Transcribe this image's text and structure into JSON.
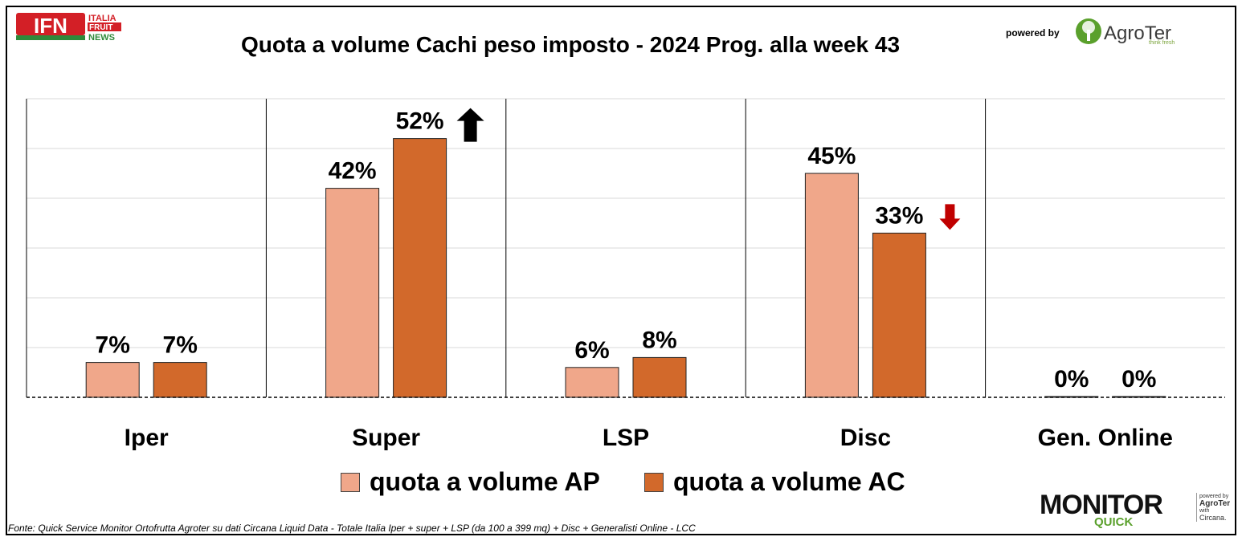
{
  "header": {
    "title": "Quota a volume Cachi peso imposto - 2024 Prog. alla week 43",
    "logo_left_lines": [
      "ITALIA",
      "FRUIT",
      "NEWS"
    ],
    "logo_left_mark": "IFN",
    "powered_by": "powered by",
    "brand": "AgroTer",
    "brand_tagline": "think fresh"
  },
  "chart_data": {
    "type": "bar",
    "categories": [
      "Iper",
      "Super",
      "LSP",
      "Disc",
      "Gen. Online"
    ],
    "series": [
      {
        "name": "quota a volume AP",
        "color": "#f0a78a",
        "values": [
          7,
          42,
          6,
          45,
          0
        ]
      },
      {
        "name": "quota a volume AC",
        "color": "#d2692b",
        "values": [
          7,
          52,
          8,
          33,
          0
        ]
      }
    ],
    "data_labels": {
      "ap": [
        "7%",
        "42%",
        "6%",
        "45%",
        "0%"
      ],
      "ac": [
        "7%",
        "52%",
        "8%",
        "33%",
        "0%"
      ]
    },
    "trend_arrows": [
      {
        "category": "Super",
        "direction": "up",
        "color": "#000000"
      },
      {
        "category": "Disc",
        "direction": "down",
        "color": "#c00000"
      }
    ],
    "ylim": [
      0,
      60
    ],
    "grid": true,
    "legend": "bottom"
  },
  "legend": {
    "items": [
      {
        "label": "quota a volume AP",
        "color": "#f0a78a"
      },
      {
        "label": "quota a volume AC",
        "color": "#d2692b"
      }
    ]
  },
  "footer": {
    "source": "Fonte: Quick Service Monitor Ortofrutta Agroter su dati Circana Liquid Data - Totale Italia Iper + super + LSP (da 100 a 399 mq) + Disc + Generalisti Online - LCC",
    "monitor_word": "MONITOR",
    "monitor_quick": "QUICK",
    "side_lines": [
      "powered by",
      "AgroTer",
      "with",
      "Circana."
    ]
  }
}
